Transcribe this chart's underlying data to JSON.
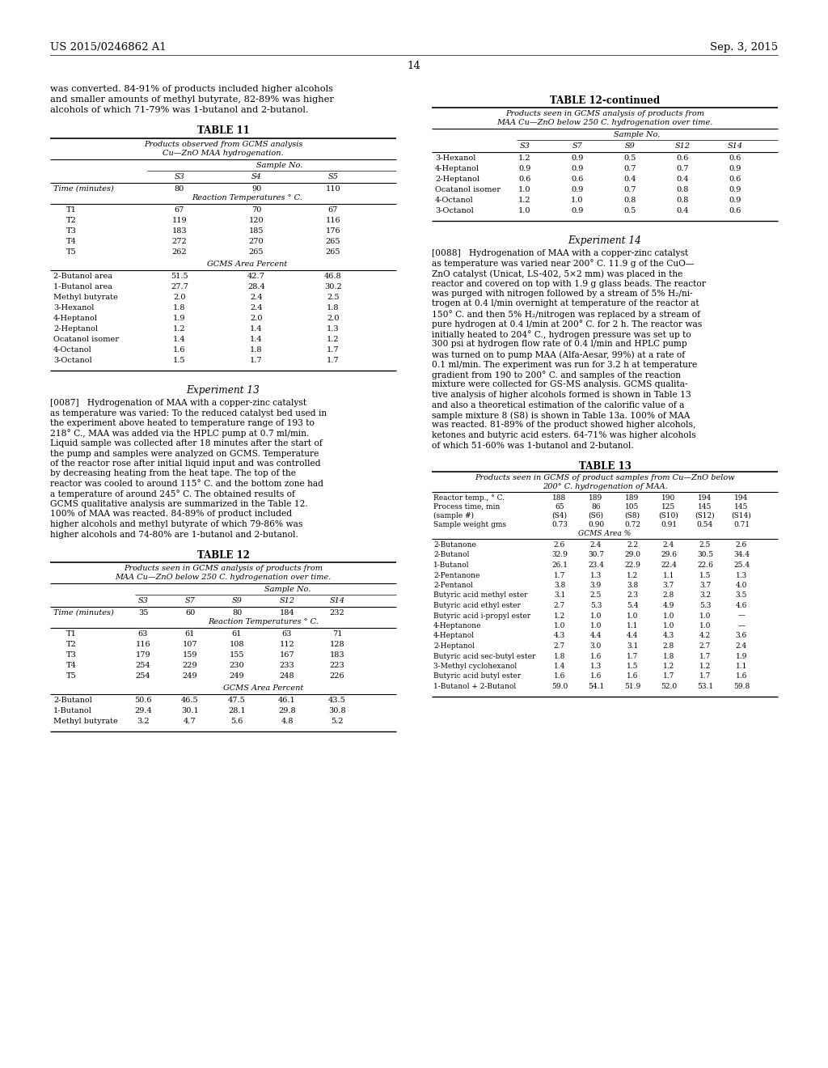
{
  "header_left": "US 2015/0246862 A1",
  "header_right": "Sep. 3, 2015",
  "page_number": "14",
  "left_text_para1": "was converted. 84-91% of products included higher alcohols\nand smaller amounts of methyl butyrate, 82-89% was higher\nalcohols of which 71-79% was 1-butanol and 2-butanol.",
  "table11_title": "TABLE 11",
  "table11_subtitle1": "Products observed from GCMS analysis",
  "table11_subtitle2": "Cu—ZnO MAA hydrogenation.",
  "table11_sampleno": "Sample No.",
  "table11_cols": [
    "S3",
    "S4",
    "S5"
  ],
  "table11_time_label": "Time (minutes)",
  "table11_time_vals": [
    "80",
    "90",
    "110"
  ],
  "table11_rxn_temp": "Reaction Temperatures ° C.",
  "table11_t_rows": [
    [
      "T1",
      "67",
      "70",
      "67"
    ],
    [
      "T2",
      "119",
      "120",
      "116"
    ],
    [
      "T3",
      "183",
      "185",
      "176"
    ],
    [
      "T4",
      "272",
      "270",
      "265"
    ],
    [
      "T5",
      "262",
      "265",
      "265"
    ]
  ],
  "table11_gcms_label": "GCMS Area Percent",
  "table11_gcms_rows": [
    [
      "2-Butanol area",
      "51.5",
      "42.7",
      "46.8"
    ],
    [
      "1-Butanol area",
      "27.7",
      "28.4",
      "30.2"
    ],
    [
      "Methyl butyrate",
      "2.0",
      "2.4",
      "2.5"
    ],
    [
      "3-Hexanol",
      "1.8",
      "2.4",
      "1.8"
    ],
    [
      "4-Heptanol",
      "1.9",
      "2.0",
      "2.0"
    ],
    [
      "2-Heptanol",
      "1.2",
      "1.4",
      "1.3"
    ],
    [
      "Ocatanol isomer",
      "1.4",
      "1.4",
      "1.2"
    ],
    [
      "4-Octanol",
      "1.6",
      "1.8",
      "1.7"
    ],
    [
      "3-Octanol",
      "1.5",
      "1.7",
      "1.7"
    ]
  ],
  "exp13_title": "Experiment 13",
  "exp13_para_lines": [
    "[0087]   Hydrogenation of MAA with a copper-zinc catalyst",
    "as temperature was varied: To the reduced catalyst bed used in",
    "the experiment above heated to temperature range of 193 to",
    "218° C., MAA was added via the HPLC pump at 0.7 ml/min.",
    "Liquid sample was collected after 18 minutes after the start of",
    "the pump and samples were analyzed on GCMS. Temperature",
    "of the reactor rose after initial liquid input and was controlled",
    "by decreasing heating from the heat tape. The top of the",
    "reactor was cooled to around 115° C. and the bottom zone had",
    "a temperature of around 245° C. The obtained results of",
    "GCMS qualitative analysis are summarized in the Table 12.",
    "100% of MAA was reacted. 84-89% of product included",
    "higher alcohols and methyl butyrate of which 79-86% was",
    "higher alcohols and 74-80% are 1-butanol and 2-butanol."
  ],
  "table12_title": "TABLE 12",
  "table12_subtitle1": "Products seen in GCMS analysis of products from",
  "table12_subtitle2": "MAA Cu—ZnO below 250 C. hydrogenation over time.",
  "table12_sampleno": "Sample No.",
  "table12_cols": [
    "S3",
    "S7",
    "S9",
    "S12",
    "S14"
  ],
  "table12_time_label": "Time (minutes)",
  "table12_time_vals": [
    "35",
    "60",
    "80",
    "184",
    "232"
  ],
  "table12_rxn_temp": "Reaction Temperatures ° C.",
  "table12_t_rows": [
    [
      "T1",
      "63",
      "61",
      "61",
      "63",
      "71"
    ],
    [
      "T2",
      "116",
      "107",
      "108",
      "112",
      "128"
    ],
    [
      "T3",
      "179",
      "159",
      "155",
      "167",
      "183"
    ],
    [
      "T4",
      "254",
      "229",
      "230",
      "233",
      "223"
    ],
    [
      "T5",
      "254",
      "249",
      "249",
      "248",
      "226"
    ]
  ],
  "table12_gcms_label": "GCMS Area Percent",
  "table12_gcms_rows": [
    [
      "2-Butanol",
      "50.6",
      "46.5",
      "47.5",
      "46.1",
      "43.5"
    ],
    [
      "1-Butanol",
      "29.4",
      "30.1",
      "28.1",
      "29.8",
      "30.8"
    ],
    [
      "Methyl butyrate",
      "3.2",
      "4.7",
      "5.6",
      "4.8",
      "5.2"
    ]
  ],
  "table12cont_title": "TABLE 12-continued",
  "table12cont_subtitle1": "Products seen in GCMS analysis of products from",
  "table12cont_subtitle2": "MAA Cu—ZnO below 250 C. hydrogenation over time.",
  "table12cont_sampleno": "Sample No.",
  "table12cont_cols": [
    "S3",
    "S7",
    "S9",
    "S12",
    "S14"
  ],
  "table12cont_rows": [
    [
      "3-Hexanol",
      "1.2",
      "0.9",
      "0.5",
      "0.6",
      "0.6"
    ],
    [
      "4-Heptanol",
      "0.9",
      "0.9",
      "0.7",
      "0.7",
      "0.9"
    ],
    [
      "2-Heptanol",
      "0.6",
      "0.6",
      "0.4",
      "0.4",
      "0.6"
    ],
    [
      "Ocatanol isomer",
      "1.0",
      "0.9",
      "0.7",
      "0.8",
      "0.9"
    ],
    [
      "4-Octanol",
      "1.2",
      "1.0",
      "0.8",
      "0.8",
      "0.9"
    ],
    [
      "3-Octanol",
      "1.0",
      "0.9",
      "0.5",
      "0.4",
      "0.6"
    ]
  ],
  "exp14_title": "Experiment 14",
  "exp14_para_lines": [
    "[0088]   Hydrogenation of MAA with a copper-zinc catalyst",
    "as temperature was varied near 200° C. 11.9 g of the CuO—",
    "ZnO catalyst (Unicat, LS-402, 5×2 mm) was placed in the",
    "reactor and covered on top with 1.9 g glass beads. The reactor",
    "was purged with nitrogen followed by a stream of 5% H₂/ni-",
    "trogen at 0.4 l/min overnight at temperature of the reactor at",
    "150° C. and then 5% H₂/nitrogen was replaced by a stream of",
    "pure hydrogen at 0.4 l/min at 200° C. for 2 h. The reactor was",
    "initially heated to 204° C., hydrogen pressure was set up to",
    "300 psi at hydrogen flow rate of 0.4 l/min and HPLC pump",
    "was turned on to pump MAA (Alfa-Aesar, 99%) at a rate of",
    "0.1 ml/min. The experiment was run for 3.2 h at temperature",
    "gradient from 190 to 200° C. and samples of the reaction",
    "mixture were collected for GS-MS analysis. GCMS qualita-",
    "tive analysis of higher alcohols formed is shown in Table 13",
    "and also a theoretical estimation of the calorific value of a",
    "sample mixture 8 (S8) is shown in Table 13a. 100% of MAA",
    "was reacted. 81-89% of the product showed higher alcohols,",
    "ketones and butyric acid esters. 64-71% was higher alcohols",
    "of which 51-60% was 1-butanol and 2-butanol."
  ],
  "table13_title": "TABLE 13",
  "table13_subtitle1": "Products seen in GCMS of product samples from Cu—ZnO below",
  "table13_subtitle2": "200° C. hydrogenation of MAA.",
  "table13_header_row1": [
    "Reactor temp., ° C.",
    "188",
    "189",
    "189",
    "190",
    "194",
    "194"
  ],
  "table13_header_row2": [
    "Process time, min",
    "65",
    "86",
    "105",
    "125",
    "145",
    "145"
  ],
  "table13_header_row3": [
    "(sample #)",
    "(S4)",
    "(S6)",
    "(S8)",
    "(S10)",
    "(S12)",
    "(S14)"
  ],
  "table13_header_row4": [
    "Sample weight gms",
    "0.73",
    "0.90",
    "0.72",
    "0.91",
    "0.54",
    "0.71"
  ],
  "table13_gcms_label": "GCMS Area %",
  "table13_rows": [
    [
      "2-Butanone",
      "2.6",
      "2.4",
      "2.2",
      "2.4",
      "2.5",
      "2.6"
    ],
    [
      "2-Butanol",
      "32.9",
      "30.7",
      "29.0",
      "29.6",
      "30.5",
      "34.4"
    ],
    [
      "1-Butanol",
      "26.1",
      "23.4",
      "22.9",
      "22.4",
      "22.6",
      "25.4"
    ],
    [
      "2-Pentanone",
      "1.7",
      "1.3",
      "1.2",
      "1.1",
      "1.5",
      "1.3"
    ],
    [
      "2-Pentanol",
      "3.8",
      "3.9",
      "3.8",
      "3.7",
      "3.7",
      "4.0"
    ],
    [
      "Butyric acid methyl ester",
      "3.1",
      "2.5",
      "2.3",
      "2.8",
      "3.2",
      "3.5"
    ],
    [
      "Butyric acid ethyl ester",
      "2.7",
      "5.3",
      "5.4",
      "4.9",
      "5.3",
      "4.6"
    ],
    [
      "Butyric acid i-propyl ester",
      "1.2",
      "1.0",
      "1.0",
      "1.0",
      "1.0",
      "—"
    ],
    [
      "4-Heptanone",
      "1.0",
      "1.0",
      "1.1",
      "1.0",
      "1.0",
      "—"
    ],
    [
      "4-Heptanol",
      "4.3",
      "4.4",
      "4.4",
      "4.3",
      "4.2",
      "3.6"
    ],
    [
      "2-Heptanol",
      "2.7",
      "3.0",
      "3.1",
      "2.8",
      "2.7",
      "2.4"
    ],
    [
      "Butyric acid sec-butyl ester",
      "1.8",
      "1.6",
      "1.7",
      "1.8",
      "1.7",
      "1.9"
    ],
    [
      "3-Methyl cyclohexanol",
      "1.4",
      "1.3",
      "1.5",
      "1.2",
      "1.2",
      "1.1"
    ],
    [
      "Butyric acid butyl ester",
      "1.6",
      "1.6",
      "1.6",
      "1.7",
      "1.7",
      "1.6"
    ],
    [
      "1-Butanol + 2-Butanol",
      "59.0",
      "54.1",
      "51.9",
      "52.0",
      "53.1",
      "59.8"
    ]
  ]
}
